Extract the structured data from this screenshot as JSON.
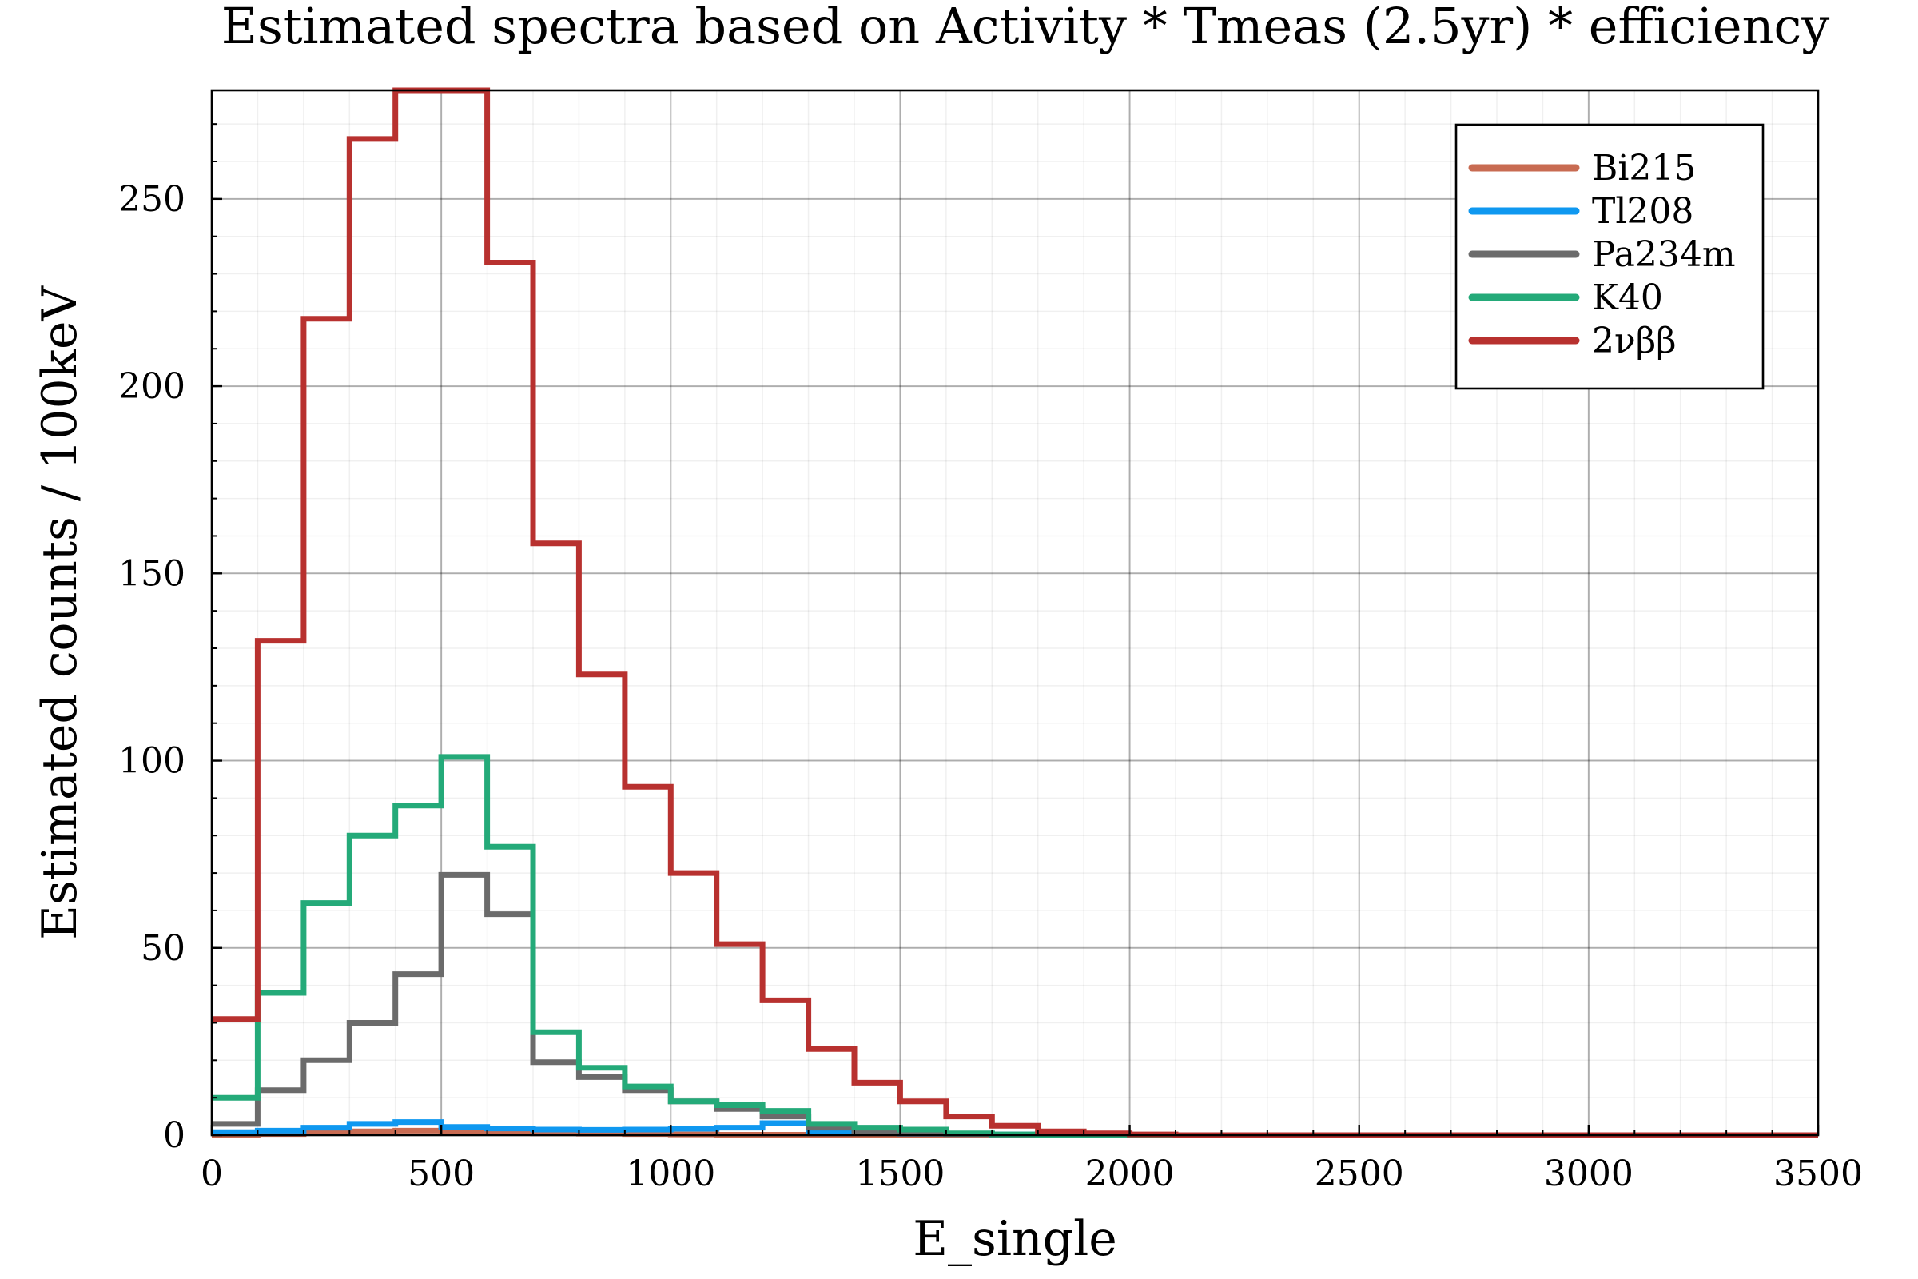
{
  "chart_data": {
    "type": "line",
    "step": "histogram",
    "title": "Estimated spectra based on Activity * Tmeas (2.5yr) * efficiency",
    "xlabel": "E_single",
    "ylabel": "Estimated counts / 100keV",
    "xlim": [
      0,
      3500
    ],
    "ylim": [
      0,
      279
    ],
    "xticks": [
      0,
      500,
      1000,
      1500,
      2000,
      2500,
      3000,
      3500
    ],
    "xtick_labels": [
      "0",
      "500",
      "1000",
      "1500",
      "2000",
      "2500",
      "3000",
      "3500"
    ],
    "yticks": [
      0,
      50,
      100,
      150,
      200,
      250
    ],
    "ytick_labels": [
      "0",
      "50",
      "100",
      "150",
      "200",
      "250"
    ],
    "grid": true,
    "legend_position": "top-right",
    "bin_edges": [
      0,
      100,
      200,
      300,
      400,
      500,
      600,
      700,
      800,
      900,
      1000,
      1100,
      1200,
      1300,
      1400,
      1500,
      1600,
      1700,
      1800,
      1900,
      2000,
      2100,
      2200,
      2300,
      2400,
      2500,
      2600,
      2700,
      2800,
      2900,
      3000,
      3100,
      3200,
      3300,
      3400,
      3500
    ],
    "series": [
      {
        "name": "Bi215",
        "color": "#c86b52",
        "values": [
          0,
          0.3,
          0.6,
          1.0,
          1.2,
          1.0,
          0.8,
          0.5,
          0.4,
          0.3,
          0.2,
          0.1,
          0.1,
          0,
          0,
          0,
          0,
          0,
          0,
          0,
          0,
          0,
          0,
          0,
          0,
          0,
          0,
          0,
          0,
          0,
          0,
          0,
          0,
          0,
          0
        ]
      },
      {
        "name": "Tl208",
        "color": "#0f98f0",
        "values": [
          0.8,
          1.2,
          2.0,
          3.0,
          3.5,
          2.2,
          1.8,
          1.5,
          1.4,
          1.5,
          1.7,
          2.0,
          3.2,
          1.0,
          0.6,
          0.4,
          0.3,
          0.2,
          0.1,
          0,
          0,
          0,
          0,
          0,
          0,
          0,
          0,
          0,
          0,
          0,
          0,
          0,
          0,
          0,
          0
        ]
      },
      {
        "name": "Pa234m",
        "color": "#6b6b6b",
        "values": [
          3,
          12,
          20,
          30,
          43,
          69.5,
          59,
          19.5,
          15.5,
          12,
          9,
          7,
          5,
          2,
          1,
          0.5,
          0.3,
          0,
          0,
          0,
          0,
          0,
          0,
          0,
          0,
          0,
          0,
          0,
          0,
          0,
          0,
          0,
          0,
          0,
          0
        ]
      },
      {
        "name": "K40",
        "color": "#24aa79",
        "values": [
          10,
          38,
          62,
          80,
          88,
          101,
          77,
          27.5,
          18,
          13,
          9,
          8,
          6.5,
          3,
          2,
          1.5,
          0.5,
          0.2,
          0,
          0,
          0,
          0,
          0,
          0,
          0,
          0,
          0,
          0,
          0,
          0,
          0,
          0,
          0,
          0,
          0
        ]
      },
      {
        "name": "2νββ",
        "color": "#b8312f",
        "values": [
          31,
          132,
          218,
          266,
          279,
          279,
          233,
          158,
          123,
          93,
          70,
          51,
          36,
          23,
          14,
          9,
          5,
          2.5,
          1,
          0.5,
          0.2,
          0,
          0,
          0,
          0,
          0,
          0,
          0,
          0,
          0,
          0,
          0,
          0,
          0,
          0
        ]
      }
    ]
  }
}
